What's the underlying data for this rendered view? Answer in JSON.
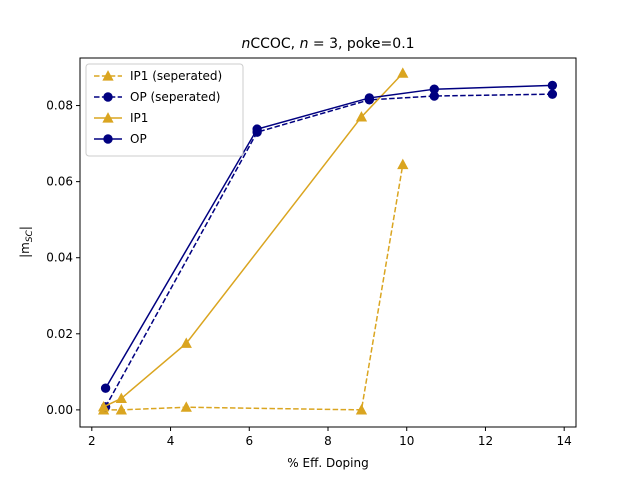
{
  "chart_data": {
    "type": "line",
    "title": "nCCOC, n = 3, poke=0.1",
    "title_parts": {
      "italic_prefix": "n",
      "rest": "CCOC, ",
      "italic_n": "n",
      "after_n": " = 3, poke=0.1"
    },
    "xlabel": "% Eff. Doping",
    "ylabel_main": "|m",
    "ylabel_sub": "SC",
    "ylabel_close": "|",
    "xlim": [
      1.7,
      14.3
    ],
    "ylim": [
      -0.0045,
      0.0925
    ],
    "xticks": [
      2,
      4,
      6,
      8,
      10,
      12,
      14
    ],
    "yticks": [
      0.0,
      0.02,
      0.04,
      0.06,
      0.08
    ],
    "xtick_labels": [
      "2",
      "4",
      "6",
      "8",
      "10",
      "12",
      "14"
    ],
    "ytick_labels": [
      "0.00",
      "0.02",
      "0.04",
      "0.06",
      "0.08"
    ],
    "grid": false,
    "legend_position": "top-left",
    "series": [
      {
        "name": "IP1 (seperated)",
        "color": "#DAA520",
        "style": "dashed",
        "marker": "triangle",
        "x": [
          2.3,
          2.75,
          4.4,
          8.85,
          9.9
        ],
        "y": [
          0.0,
          0.0,
          0.0007,
          0.0,
          0.0645
        ]
      },
      {
        "name": "OP (seperated)",
        "color": "#000080",
        "style": "dashed",
        "marker": "circle",
        "x": [
          2.35,
          6.2,
          9.05,
          10.7,
          13.7
        ],
        "y": [
          0.0008,
          0.073,
          0.0815,
          0.0825,
          0.083
        ]
      },
      {
        "name": "IP1",
        "color": "#DAA520",
        "style": "solid",
        "marker": "triangle",
        "x": [
          2.3,
          2.75,
          4.4,
          8.85,
          9.9
        ],
        "y": [
          0.0008,
          0.003,
          0.0175,
          0.077,
          0.0885
        ]
      },
      {
        "name": "OP",
        "color": "#000080",
        "style": "solid",
        "marker": "circle",
        "x": [
          2.35,
          6.2,
          9.05,
          10.7,
          13.7
        ],
        "y": [
          0.0057,
          0.0738,
          0.082,
          0.0843,
          0.0853
        ]
      }
    ]
  }
}
